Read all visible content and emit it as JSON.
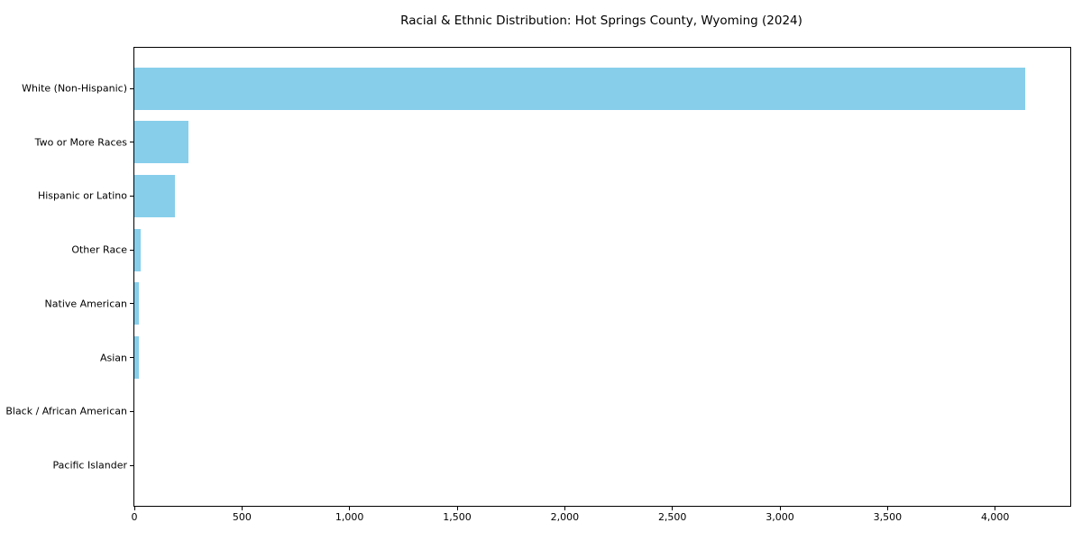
{
  "chart_data": {
    "type": "bar",
    "orientation": "horizontal",
    "title": "Racial & Ethnic Distribution: Hot Springs County, Wyoming (2024)",
    "categories": [
      "White (Non-Hispanic)",
      "Two or More Races",
      "Hispanic or Latino",
      "Other Race",
      "Native American",
      "Asian",
      "Black / African American",
      "Pacific Islander"
    ],
    "values": [
      4140,
      250,
      190,
      29,
      21,
      19,
      0,
      0
    ],
    "xlabel": "",
    "ylabel": "",
    "xlim": [
      0,
      4349
    ],
    "xticks": [
      0,
      500,
      1000,
      1500,
      2000,
      2500,
      3000,
      3500,
      4000
    ],
    "xtick_labels": [
      "0",
      "500",
      "1,000",
      "1,500",
      "2,000",
      "2,500",
      "3,000",
      "3,500",
      "4,000"
    ],
    "bar_color": "#87CEEB",
    "background_color": "#ffffff",
    "spine_color": "#000000",
    "text_color": "#000000",
    "grid": false,
    "legend": null
  }
}
